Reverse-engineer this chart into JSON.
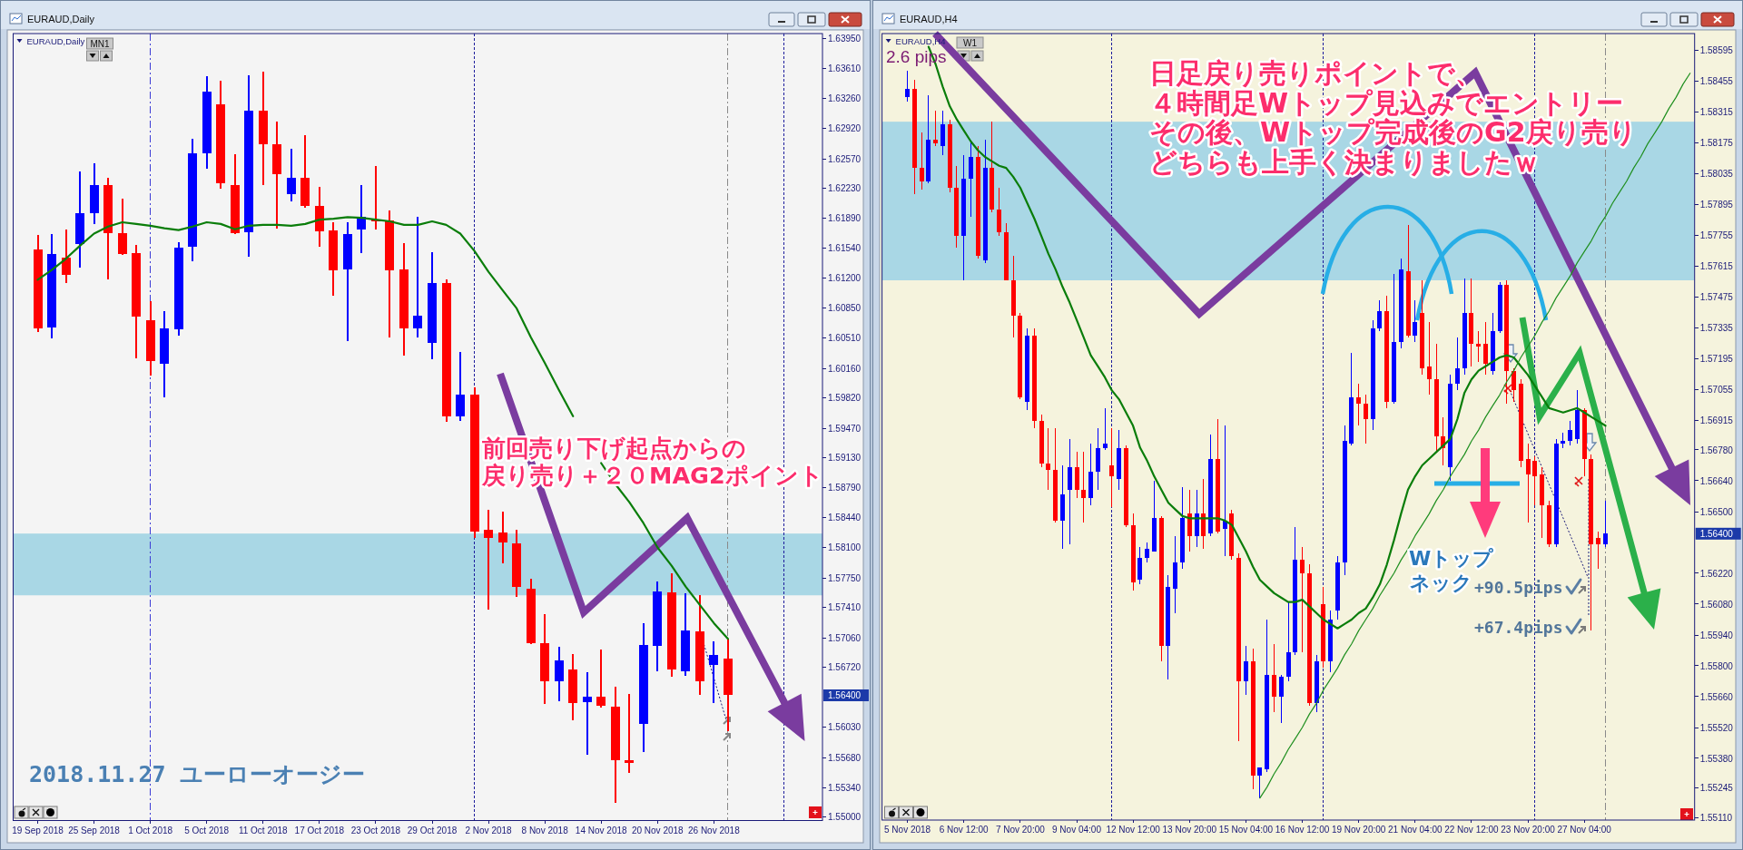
{
  "chart_data": [
    {
      "type": "candlestick",
      "title": "EURAUD,Daily",
      "subtitle": "EURAUD,Daily",
      "categories": [
        "19 Sep 2018",
        null,
        null,
        null,
        "25 Sep 2018",
        null,
        null,
        null,
        "1 Oct 2018",
        null,
        null,
        null,
        "5 Oct 2018",
        null,
        null,
        null,
        "11 Oct 2018",
        null,
        null,
        null,
        "17 Oct 2018",
        null,
        null,
        null,
        "23 Oct 2018",
        null,
        null,
        null,
        "29 Oct 2018",
        null,
        null,
        null,
        "2 Nov 2018",
        null,
        null,
        null,
        "8 Nov 2018",
        null,
        null,
        null,
        "14 Nov 2018",
        null,
        null,
        null,
        "20 Nov 2018",
        null,
        null,
        null,
        "26 Nov 2018",
        null,
        null,
        null,
        null,
        null,
        null,
        null
      ],
      "ohlc": [
        [
          1.6153,
          1.6169,
          1.6058,
          1.6062
        ],
        [
          1.6063,
          1.617,
          1.605,
          1.6147
        ],
        [
          1.6143,
          1.6176,
          1.6114,
          1.6124
        ],
        [
          1.6159,
          1.6242,
          1.6132,
          1.6194
        ],
        [
          1.6194,
          1.6252,
          1.6182,
          1.6227
        ],
        [
          1.6227,
          1.6235,
          1.6118,
          1.6171
        ],
        [
          1.6172,
          1.6211,
          1.6146,
          1.6147
        ],
        [
          1.6149,
          1.6158,
          1.6028,
          1.6075
        ],
        [
          1.6071,
          1.6093,
          1.6008,
          1.6024
        ],
        [
          1.6021,
          1.6082,
          1.5983,
          1.6062
        ],
        [
          1.6061,
          1.6161,
          1.6054,
          1.6155
        ],
        [
          1.6156,
          1.628,
          1.6139,
          1.6263
        ],
        [
          1.6263,
          1.6352,
          1.6246,
          1.6334
        ],
        [
          1.632,
          1.6347,
          1.6223,
          1.6229
        ],
        [
          1.6227,
          1.6262,
          1.617,
          1.6172
        ],
        [
          1.6173,
          1.6353,
          1.6144,
          1.6312
        ],
        [
          1.6312,
          1.6357,
          1.6227,
          1.6274
        ],
        [
          1.6274,
          1.63,
          1.6177,
          1.6239
        ],
        [
          1.6216,
          1.6268,
          1.6208,
          1.6235
        ],
        [
          1.6235,
          1.6284,
          1.6201,
          1.6203
        ],
        [
          1.6203,
          1.6225,
          1.6156,
          1.6174
        ],
        [
          1.6175,
          1.6184,
          1.61,
          1.6129
        ],
        [
          1.613,
          1.6184,
          1.6047,
          1.617
        ],
        [
          1.6176,
          1.6227,
          1.6149,
          1.619
        ],
        [
          1.6187,
          1.6249,
          1.6176,
          1.6185
        ],
        [
          1.6186,
          1.6198,
          1.6051,
          1.6129
        ],
        [
          1.613,
          1.616,
          1.6031,
          1.6062
        ],
        [
          1.6062,
          1.619,
          1.6051,
          1.6077
        ],
        [
          1.6045,
          1.615,
          1.6026,
          1.6114
        ],
        [
          1.6114,
          1.6118,
          1.5954,
          1.5961
        ],
        [
          1.5961,
          1.6035,
          1.5956,
          1.5986
        ],
        [
          1.5986,
          1.5994,
          1.5821,
          1.5828
        ],
        [
          1.583,
          1.5853,
          1.5739,
          1.5821
        ],
        [
          1.5827,
          1.5851,
          1.5792,
          1.5816
        ],
        [
          1.5815,
          1.583,
          1.5753,
          1.5765
        ],
        [
          1.5763,
          1.5774,
          1.5699,
          1.57
        ],
        [
          1.57,
          1.5733,
          1.563,
          1.5656
        ],
        [
          1.5656,
          1.5696,
          1.5633,
          1.568
        ],
        [
          1.567,
          1.5687,
          1.5611,
          1.5631
        ],
        [
          1.5632,
          1.5667,
          1.5572,
          1.5638
        ],
        [
          1.5638,
          1.5693,
          1.5626,
          1.5628
        ],
        [
          1.5627,
          1.565,
          1.5516,
          1.5565
        ],
        [
          1.5565,
          1.5642,
          1.5551,
          1.5562
        ],
        [
          1.5607,
          1.5723,
          1.5575,
          1.5698
        ],
        [
          1.5697,
          1.5771,
          1.5668,
          1.5759
        ],
        [
          1.5758,
          1.578,
          1.5661,
          1.567
        ],
        [
          1.5668,
          1.5757,
          1.5662,
          1.5715
        ],
        [
          1.5714,
          1.5755,
          1.5641,
          1.5656
        ],
        [
          1.5675,
          1.5702,
          1.5631,
          1.5686
        ],
        [
          1.5682,
          1.5705,
          1.5599,
          1.564
        ],
        null,
        null,
        null,
        null,
        null,
        null
      ],
      "colors": [
        "#ff0000",
        "#0000ff",
        "#ff0000",
        "#0000ff",
        "#0000ff",
        "#ff0000",
        "#ff0000",
        "#ff0000",
        "#ff0000",
        "#0000ff",
        "#0000ff",
        "#0000ff",
        "#0000ff",
        "#ff0000",
        "#ff0000",
        "#0000ff",
        "#ff0000",
        "#ff0000",
        "#0000ff",
        "#ff0000",
        "#ff0000",
        "#ff0000",
        "#0000ff",
        "#0000ff",
        "#ff0000",
        "#ff0000",
        "#ff0000",
        "#0000ff",
        "#0000ff",
        "#ff0000",
        "#0000ff",
        "#ff0000",
        "#ff0000",
        "#ff0000",
        "#ff0000",
        "#ff0000",
        "#ff0000",
        "#0000ff",
        "#ff0000",
        "#0000ff",
        "#ff0000",
        "#ff0000",
        "#ff0000",
        "#0000ff",
        "#0000ff",
        "#ff0000",
        "#0000ff",
        "#ff0000",
        "#0000ff",
        "#ff0000",
        null,
        null,
        null,
        null,
        null,
        null
      ],
      "series": [
        {
          "type": "line",
          "color": "#0a7d0a",
          "values": [
            1.6118,
            1.6129,
            1.6142,
            1.6157,
            1.6171,
            1.6179,
            1.6184,
            1.6182,
            1.618,
            1.6177,
            1.6175,
            1.6179,
            1.6184,
            1.6182,
            1.6176,
            1.618,
            1.6181,
            1.6181,
            1.618,
            1.6182,
            1.6187,
            1.6188,
            1.619,
            1.6189,
            1.6187,
            1.6185,
            1.6181,
            1.6181,
            1.6185,
            1.6181,
            1.6171,
            1.6151,
            1.6127,
            1.6106,
            1.6085,
            1.6052,
            1.6022,
            1.5991,
            1.5961,
            null,
            1.5907,
            1.5883,
            1.5862,
            1.5838,
            1.581,
            1.5789,
            1.5765,
            1.5744,
            1.5723,
            1.5705,
            null,
            null,
            null,
            null,
            null,
            null
          ]
        }
      ],
      "ylim": [
        1.5496,
        1.6401
      ],
      "yticks": [
        {
          "value": 1.6395,
          "label": "1.63950"
        },
        {
          "value": 1.6361,
          "label": "1.63610"
        },
        {
          "value": 1.6326,
          "label": "1.63260"
        },
        {
          "value": 1.6292,
          "label": "1.62920"
        },
        {
          "value": 1.6257,
          "label": "1.62570"
        },
        {
          "value": 1.6223,
          "label": "1.62230"
        },
        {
          "value": 1.6189,
          "label": "1.61890"
        },
        {
          "value": 1.6154,
          "label": "1.61540"
        },
        {
          "value": 1.612,
          "label": "1.61200"
        },
        {
          "value": 1.6085,
          "label": "1.60850"
        },
        {
          "value": 1.6051,
          "label": "1.60510"
        },
        {
          "value": 1.6016,
          "label": "1.60160"
        },
        {
          "value": 1.5982,
          "label": "1.59820"
        },
        {
          "value": 1.5947,
          "label": "1.59470"
        },
        {
          "value": 1.5913,
          "label": "1.59130"
        },
        {
          "value": 1.5879,
          "label": "1.58790"
        },
        {
          "value": 1.5844,
          "label": "1.58440"
        },
        {
          "value": 1.581,
          "label": "1.58100"
        },
        {
          "value": 1.5775,
          "label": "1.57750"
        },
        {
          "value": 1.5741,
          "label": "1.57410"
        },
        {
          "value": 1.5706,
          "label": "1.57060"
        },
        {
          "value": 1.5672,
          "label": "1.56720"
        },
        {
          "value": 1.5603,
          "label": "1.56030"
        },
        {
          "value": 1.5568,
          "label": "1.55680"
        },
        {
          "value": 1.5534,
          "label": "1.55340"
        },
        {
          "value": 1.55,
          "label": "1.55000"
        }
      ],
      "bands": [
        {
          "axis": "y",
          "from": 1.5755,
          "to": 1.5826,
          "color": "#a9d7e5"
        }
      ],
      "ref_lines": [
        {
          "axis": "x",
          "value": "1 Oct 2018",
          "color": "#3d3dd6",
          "line_style": "dashed"
        }
      ],
      "annotations": [
        "MN1",
        "2018.11.27 ユーローオージー",
        "前回売り下げ起点からの",
        "戻り売り＋２０MAG2ポイント",
        "1.56400"
      ]
    },
    {
      "type": "candlestick",
      "title": "EURAUD,H4",
      "subtitle": "EURAUD,H4",
      "categories": [
        "5 Nov 2018",
        null,
        null,
        null,
        null,
        null,
        null,
        null,
        "6 Nov 12:00",
        null,
        null,
        null,
        null,
        null,
        null,
        null,
        "7 Nov 20:00",
        null,
        null,
        null,
        null,
        null,
        null,
        null,
        "9 Nov 04:00",
        null,
        null,
        null,
        null,
        null,
        null,
        null,
        "12 Nov 12:00",
        null,
        null,
        null,
        null,
        null,
        null,
        null,
        "13 Nov 20:00",
        null,
        null,
        null,
        null,
        null,
        null,
        null,
        "15 Nov 04:00",
        null,
        null,
        null,
        null,
        null,
        null,
        null,
        "16 Nov 12:00",
        null,
        null,
        null,
        null,
        null,
        null,
        null,
        "19 Nov 20:00",
        null,
        null,
        null,
        null,
        null,
        null,
        null,
        "21 Nov 04:00",
        null,
        null,
        null,
        null,
        null,
        null,
        null,
        "22 Nov 12:00",
        null,
        null,
        null,
        null,
        null,
        null,
        null,
        "23 Nov 20:00",
        null,
        null,
        null,
        null,
        null,
        null,
        null,
        "27 Nov 04:00",
        null,
        null,
        null,
        null,
        null,
        null,
        null,
        null,
        null,
        null,
        null,
        null,
        null,
        null,
        null
      ],
      "ohlc": [
        [
          1.5838,
          1.585,
          1.5836,
          1.5842
        ],
        [
          1.5842,
          1.5846,
          1.5794,
          1.5806
        ],
        [
          1.5806,
          1.5822,
          1.5796,
          1.58
        ],
        [
          1.58,
          1.5839,
          1.5799,
          1.5819
        ],
        [
          1.5819,
          1.5832,
          1.5816,
          1.5817
        ],
        [
          1.5816,
          1.5832,
          1.5812,
          1.5826
        ],
        [
          1.5826,
          1.5828,
          1.5795,
          1.5797
        ],
        [
          1.5797,
          1.5807,
          1.577,
          1.5775
        ],
        [
          1.5775,
          1.5812,
          1.5755,
          1.5801
        ],
        [
          1.5801,
          1.5818,
          1.5784,
          1.5811
        ],
        [
          1.5811,
          1.5816,
          1.5765,
          1.5766
        ],
        [
          1.5764,
          1.5819,
          1.5763,
          1.5806
        ],
        [
          1.5806,
          1.5827,
          1.5786,
          1.5787
        ],
        [
          1.5787,
          1.5797,
          1.5775,
          1.5777
        ],
        [
          1.5777,
          1.5781,
          1.5755,
          1.5755
        ],
        [
          1.5755,
          1.5766,
          1.5729,
          1.5739
        ],
        [
          1.5739,
          1.574,
          1.5701,
          1.5702
        ],
        [
          1.57,
          1.5733,
          1.5696,
          1.573
        ],
        [
          1.573,
          1.5733,
          1.5688,
          1.5691
        ],
        [
          1.5691,
          1.5694,
          1.567,
          1.5672
        ],
        [
          1.5672,
          1.5688,
          1.566,
          1.5669
        ],
        [
          1.5669,
          1.5688,
          1.5645,
          1.5646
        ],
        [
          1.5646,
          1.5671,
          1.5633,
          1.5658
        ],
        [
          1.566,
          1.5683,
          1.5635,
          1.567
        ],
        [
          1.567,
          1.5677,
          1.5656,
          1.566
        ],
        [
          1.566,
          1.5677,
          1.5645,
          1.5656
        ],
        [
          1.5656,
          1.5681,
          1.5653,
          1.5668
        ],
        [
          1.5668,
          1.5688,
          1.566,
          1.5679
        ],
        [
          1.5679,
          1.5697,
          1.5678,
          1.5681
        ],
        [
          1.5671,
          1.5688,
          1.5652,
          1.5666
        ],
        [
          1.5665,
          1.5687,
          1.566,
          1.5679
        ],
        [
          1.5679,
          1.568,
          1.5643,
          1.5644
        ],
        [
          1.5644,
          1.5649,
          1.5614,
          1.5618
        ],
        [
          1.5619,
          1.5634,
          1.5617,
          1.5629
        ],
        [
          1.5629,
          1.5636,
          1.5627,
          1.5633
        ],
        [
          1.5632,
          1.5664,
          1.5632,
          1.5647
        ],
        [
          1.5647,
          1.5648,
          1.5582,
          1.5589
        ],
        [
          1.5589,
          1.5621,
          1.5574,
          1.5616
        ],
        [
          1.5615,
          1.5639,
          1.5604,
          1.5627
        ],
        [
          1.5627,
          1.5661,
          1.5624,
          1.5647
        ],
        [
          1.5649,
          1.566,
          1.5632,
          1.5639
        ],
        [
          1.5639,
          1.566,
          1.5634,
          1.5649
        ],
        [
          1.5649,
          1.5665,
          1.5633,
          1.5639
        ],
        [
          1.564,
          1.5685,
          1.5639,
          1.5674
        ],
        [
          1.5674,
          1.5692,
          1.564,
          1.5641
        ],
        [
          1.5642,
          1.5689,
          1.563,
          1.5646
        ],
        [
          1.5649,
          1.5651,
          1.5628,
          1.563
        ],
        [
          1.5629,
          1.5631,
          1.5546,
          1.5573
        ],
        [
          1.5573,
          1.5589,
          1.5567,
          1.5582
        ],
        [
          1.5582,
          1.5588,
          1.5524,
          1.553
        ],
        [
          1.553,
          1.5534,
          1.552,
          1.5534
        ],
        [
          1.5533,
          1.5601,
          1.5532,
          1.5576
        ],
        [
          1.5576,
          1.559,
          1.5559,
          1.5566
        ],
        [
          1.5566,
          1.5576,
          1.5554,
          1.5575
        ],
        [
          1.5575,
          1.5609,
          1.5573,
          1.5586
        ],
        [
          1.5586,
          1.5643,
          1.5585,
          1.5628
        ],
        [
          1.5628,
          1.5634,
          1.5586,
          1.5622
        ],
        [
          1.5622,
          1.5626,
          1.5562,
          1.5563
        ],
        [
          1.5563,
          1.5585,
          1.5559,
          1.5582
        ],
        [
          1.5608,
          1.5616,
          1.5579,
          1.5582
        ],
        [
          1.5582,
          1.5605,
          1.5577,
          1.5601
        ],
        [
          1.5605,
          1.563,
          1.5601,
          1.5627
        ],
        [
          1.5627,
          1.5689,
          1.5621,
          1.5682
        ],
        [
          1.5681,
          1.5722,
          1.568,
          1.5702
        ],
        [
          1.5702,
          1.5708,
          1.5689,
          1.5699
        ],
        [
          1.5699,
          1.5703,
          1.5681,
          1.5692
        ],
        [
          1.5692,
          1.5737,
          1.5687,
          1.5733
        ],
        [
          1.5733,
          1.5746,
          1.5732,
          1.5741
        ],
        [
          1.5741,
          1.5748,
          1.5697,
          1.57
        ],
        [
          1.57,
          1.5758,
          1.5699,
          1.5727
        ],
        [
          1.5727,
          1.5765,
          1.5724,
          1.576
        ],
        [
          1.5759,
          1.578,
          1.5729,
          1.573
        ],
        [
          1.573,
          1.5746,
          1.5727,
          1.5736
        ],
        [
          1.574,
          1.5755,
          1.5712,
          1.5715
        ],
        [
          1.5716,
          1.5736,
          1.5703,
          1.571
        ],
        [
          1.571,
          1.5726,
          1.5677,
          1.5684
        ],
        [
          1.5684,
          1.5693,
          1.5671,
          1.5679
        ],
        [
          1.567,
          1.5712,
          1.5664,
          1.5708
        ],
        [
          1.5708,
          1.5729,
          1.5705,
          1.5715
        ],
        [
          1.5715,
          1.5756,
          1.5712,
          1.574
        ],
        [
          1.574,
          1.5756,
          1.5716,
          1.5726
        ],
        [
          1.5726,
          1.5732,
          1.5718,
          1.5725
        ],
        [
          1.5726,
          1.5736,
          1.5712,
          1.5717
        ],
        [
          1.5714,
          1.574,
          1.5712,
          1.5732
        ],
        [
          1.5732,
          1.5754,
          1.5731,
          1.5753
        ],
        [
          1.5753,
          1.5755,
          1.5699,
          1.5714
        ],
        [
          1.5714,
          1.5715,
          1.57,
          1.5705
        ],
        [
          1.5708,
          1.571,
          1.567,
          1.5673
        ],
        [
          1.5674,
          1.5681,
          1.5645,
          1.5667
        ],
        [
          1.5673,
          1.5675,
          1.5653,
          1.5666
        ],
        [
          1.5667,
          1.567,
          1.5638,
          1.5653
        ],
        [
          1.5653,
          1.5655,
          1.5634,
          1.5635
        ],
        [
          1.5635,
          1.5683,
          1.5634,
          1.5681
        ],
        [
          1.5681,
          1.5686,
          1.5679,
          1.5682
        ],
        [
          1.5682,
          1.5691,
          1.568,
          1.5687
        ],
        [
          1.5683,
          1.5705,
          1.5681,
          1.5696
        ],
        [
          1.5696,
          1.5697,
          1.5666,
          1.5674
        ],
        [
          1.5674,
          1.5676,
          1.5596,
          1.5635
        ],
        [
          1.5638,
          1.5641,
          1.5624,
          1.5635
        ],
        [
          1.5635,
          1.5655,
          1.5634,
          1.564
        ],
        null,
        null,
        null,
        null,
        null,
        null,
        null,
        null,
        null,
        null,
        null,
        null
      ],
      "colors": [
        "#0000ff",
        "#ff0000",
        "#ff0000",
        "#0000ff",
        "#ff0000",
        "#0000ff",
        "#ff0000",
        "#ff0000",
        "#0000ff",
        "#0000ff",
        "#ff0000",
        "#0000ff",
        "#ff0000",
        "#ff0000",
        "#ff0000",
        "#ff0000",
        "#ff0000",
        "#0000ff",
        "#ff0000",
        "#ff0000",
        "#ff0000",
        "#ff0000",
        "#0000ff",
        "#0000ff",
        "#ff0000",
        "#ff0000",
        "#0000ff",
        "#0000ff",
        "#0000ff",
        "#ff0000",
        "#0000ff",
        "#ff0000",
        "#ff0000",
        "#0000ff",
        "#0000ff",
        "#0000ff",
        "#ff0000",
        "#0000ff",
        "#0000ff",
        "#0000ff",
        "#ff0000",
        "#0000ff",
        "#ff0000",
        "#0000ff",
        "#ff0000",
        "#0000ff",
        "#ff0000",
        "#ff0000",
        "#0000ff",
        "#ff0000",
        "#0000ff",
        "#0000ff",
        "#ff0000",
        "#0000ff",
        "#0000ff",
        "#0000ff",
        "#ff0000",
        "#ff0000",
        "#0000ff",
        "#ff0000",
        "#0000ff",
        "#0000ff",
        "#0000ff",
        "#0000ff",
        "#ff0000",
        "#ff0000",
        "#0000ff",
        "#0000ff",
        "#ff0000",
        "#0000ff",
        "#0000ff",
        "#ff0000",
        "#0000ff",
        "#ff0000",
        "#ff0000",
        "#ff0000",
        "#ff0000",
        "#0000ff",
        "#0000ff",
        "#0000ff",
        "#ff0000",
        "#ff0000",
        "#ff0000",
        "#0000ff",
        "#0000ff",
        "#ff0000",
        "#ff0000",
        "#ff0000",
        "#ff0000",
        "#ff0000",
        "#ff0000",
        "#ff0000",
        "#0000ff",
        "#0000ff",
        "#0000ff",
        "#0000ff",
        "#ff0000",
        "#ff0000",
        "#ff0000",
        "#0000ff",
        null,
        null,
        null,
        null,
        null,
        null,
        null,
        null,
        null,
        null,
        null,
        null
      ],
      "series": [
        {
          "type": "line",
          "color": "#0a7d0a",
          "values": [
            null,
            null,
            null,
            1.5861,
            1.5853,
            1.5843,
            1.5834,
            1.5828,
            1.5823,
            1.5818,
            1.5814,
            1.5811,
            1.5809,
            1.5807,
            1.5806,
            1.5802,
            1.5797,
            1.579,
            1.5783,
            1.5775,
            1.5767,
            1.576,
            1.5752,
            1.5745,
            1.5737,
            1.5729,
            1.5721,
            1.5716,
            1.5711,
            1.5705,
            1.5701,
            1.5695,
            1.5689,
            1.5679,
            1.5673,
            1.5666,
            1.566,
            1.5654,
            1.5651,
            1.5648,
            1.5647,
            1.5647,
            1.5647,
            1.5647,
            1.5647,
            1.5646,
            1.5644,
            1.5638,
            1.5632,
            1.5625,
            1.5619,
            1.5616,
            1.5613,
            1.5611,
            1.5609,
            1.5609,
            1.561,
            1.5607,
            1.5604,
            1.5601,
            1.5599,
            1.5597,
            1.5599,
            1.5601,
            1.5604,
            1.5606,
            1.5611,
            1.5617,
            1.5626,
            1.5637,
            1.5649,
            1.566,
            1.5666,
            1.5671,
            1.5674,
            1.5677,
            1.568,
            1.5683,
            1.5692,
            1.5704,
            1.571,
            1.5714,
            1.5716,
            1.5718,
            1.572,
            1.5721,
            1.572,
            1.5716,
            1.5712,
            1.5707,
            1.5702,
            1.5697,
            1.5696,
            1.5695,
            1.5696,
            1.5697,
            1.5695,
            1.5693,
            1.5691,
            1.5689,
            null,
            null,
            null,
            null,
            null,
            null,
            null,
            null,
            null,
            null,
            null,
            null
          ]
        },
        {
          "type": "line",
          "color": "#1f8f1f",
          "values": [
            null,
            null,
            null,
            null,
            null,
            null,
            null,
            null,
            null,
            null,
            null,
            null,
            null,
            null,
            null,
            null,
            null,
            null,
            null,
            null,
            null,
            null,
            null,
            null,
            null,
            null,
            null,
            null,
            null,
            null,
            null,
            null,
            null,
            null,
            null,
            null,
            null,
            null,
            null,
            null,
            null,
            null,
            null,
            null,
            null,
            null,
            null,
            null,
            null,
            null,
            1.552,
            1.5525,
            1.5531,
            1.5536,
            1.5542,
            1.5547,
            1.5552,
            1.5558,
            1.5563,
            1.5569,
            1.5574,
            1.5579,
            1.5585,
            1.559,
            1.5596,
            1.5601,
            1.5606,
            1.5612,
            1.5617,
            1.5622,
            1.5628,
            1.5633,
            1.5639,
            1.5644,
            1.5649,
            1.5655,
            1.566,
            1.5666,
            1.5671,
            1.5676,
            1.5682,
            1.5687,
            1.5693,
            1.5698,
            1.5703,
            1.5709,
            1.5714,
            1.572,
            1.5725,
            1.573,
            1.5736,
            1.5741,
            1.5747,
            1.5752,
            1.5757,
            1.5763,
            1.5768,
            1.5773,
            1.5779,
            1.5784,
            1.579,
            1.5795,
            1.58,
            1.5806,
            1.5811,
            1.5817,
            1.5822,
            1.5827,
            1.5833,
            1.5838,
            1.5844,
            1.5849
          ]
        }
      ],
      "ylim": [
        1.551,
        1.5867
      ],
      "yticks": [
        {
          "value": 1.58595,
          "label": "1.58595"
        },
        {
          "value": 1.58455,
          "label": "1.58455"
        },
        {
          "value": 1.58315,
          "label": "1.58315"
        },
        {
          "value": 1.58175,
          "label": "1.58175"
        },
        {
          "value": 1.58035,
          "label": "1.58035"
        },
        {
          "value": 1.57895,
          "label": "1.57895"
        },
        {
          "value": 1.57755,
          "label": "1.57755"
        },
        {
          "value": 1.57615,
          "label": "1.57615"
        },
        {
          "value": 1.57475,
          "label": "1.57475"
        },
        {
          "value": 1.57335,
          "label": "1.57335"
        },
        {
          "value": 1.57195,
          "label": "1.57195"
        },
        {
          "value": 1.57055,
          "label": "1.57055"
        },
        {
          "value": 1.56915,
          "label": "1.56915"
        },
        {
          "value": 1.5678,
          "label": "1.56780"
        },
        {
          "value": 1.5664,
          "label": "1.56640"
        },
        {
          "value": 1.565,
          "label": "1.56500"
        },
        {
          "value": 1.5622,
          "label": "1.56220"
        },
        {
          "value": 1.5608,
          "label": "1.56080"
        },
        {
          "value": 1.5594,
          "label": "1.55940"
        },
        {
          "value": 1.558,
          "label": "1.55800"
        },
        {
          "value": 1.5566,
          "label": "1.55660"
        },
        {
          "value": 1.5552,
          "label": "1.55520"
        },
        {
          "value": 1.5538,
          "label": "1.55380"
        },
        {
          "value": 1.55245,
          "label": "1.55245"
        },
        {
          "value": 1.5511,
          "label": "1.55110"
        }
      ],
      "bands": [
        {
          "axis": "y",
          "from": 1.5755,
          "to": 1.5827,
          "color": "#a9d7e5"
        }
      ],
      "annotations": [
        "W1",
        "2.6 pips",
        "日足戻り売りポイントで、",
        "４時間足Wトップ見込みでエントリー",
        "その後、Wトップ完成後のG2戻り売り",
        "どちらも上手く決まりましたｗ",
        "Wトップ",
        "ネック",
        "+90.5pips",
        "+67.4pips",
        "1.56400"
      ]
    }
  ]
}
